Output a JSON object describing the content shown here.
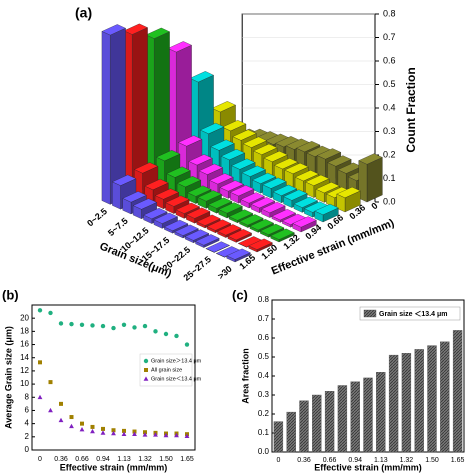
{
  "chart_data": [
    {
      "type": "bar3d",
      "panel_label": "(a)",
      "xlabel": "Grain size(μm)",
      "ylabel": "Effective strain (mm/mm)",
      "zlabel": "Count Fraction",
      "categories": [
        "0~2.5",
        null,
        "5~7.5",
        null,
        "10~12.5",
        null,
        "15~17.5",
        null,
        "20~22.5",
        null,
        "25~27.5",
        null,
        ">30"
      ],
      "zlim": [
        0,
        0.8
      ],
      "zticks": [
        {
          "value": 0,
          "label": "0.0"
        },
        0.1,
        0.2,
        0.3,
        0.4,
        0.5,
        0.6,
        0.7,
        0.8
      ],
      "series": [
        {
          "name": "0",
          "color": "#8a8a30",
          "values": [
            0.02,
            0.04,
            0.05,
            0.06,
            0.07,
            0.08,
            0.09,
            0.09,
            0.1,
            0.09,
            0.08,
            0.07,
            0.16
          ]
        },
        {
          "name": "0.36",
          "color": "#e6e600",
          "values": [
            0.18,
            0.12,
            0.1,
            0.09,
            0.08,
            0.07,
            0.06,
            0.06,
            0.05,
            0.05,
            0.04,
            0.04,
            0.06
          ]
        },
        {
          "name": "0.66",
          "color": "#00e0e0",
          "values": [
            0.35,
            0.15,
            0.1,
            0.08,
            0.06,
            0.05,
            0.04,
            0.04,
            0.03,
            0.03,
            0.02,
            0.02,
            0.03
          ]
        },
        {
          "name": "0.94",
          "color": "#ff30ff",
          "values": [
            0.52,
            0.14,
            0.08,
            0.06,
            0.04,
            0.03,
            0.03,
            0.02,
            0.02,
            0.02,
            0.01,
            0.01,
            0.02
          ]
        },
        {
          "name": "1.32",
          "color": "#20c020",
          "values": [
            0.62,
            0.12,
            0.07,
            0.05,
            0.03,
            0.03,
            0.02,
            0.02,
            0.01,
            0.01,
            0.01,
            0.01,
            0.01
          ]
        },
        {
          "name": "1.50",
          "color": "#ff2020",
          "values": [
            0.68,
            0.11,
            0.06,
            0.04,
            0.03,
            0.02,
            0.02,
            0.01,
            0.01,
            0.01,
            0.01,
            0.0,
            0.01
          ]
        },
        {
          "name": "1.65",
          "color": "#6a5aff",
          "values": [
            0.72,
            0.1,
            0.05,
            0.04,
            0.02,
            0.02,
            0.01,
            0.01,
            0.01,
            0.01,
            0.0,
            0.0,
            0.01
          ]
        }
      ]
    },
    {
      "type": "scatter",
      "panel_label": "(b)",
      "xlabel": "Effective strain (mm/mm)",
      "ylabel": "Average Grain size (μm)",
      "categories": [
        "0",
        null,
        "0.36",
        null,
        "0.66",
        null,
        "0.94",
        null,
        "1.13",
        null,
        "1.32",
        null,
        "1.50",
        null,
        "1.65"
      ],
      "ylim": [
        0,
        22
      ],
      "yticks": [
        0,
        2,
        4,
        6,
        8,
        10,
        12,
        14,
        16,
        18,
        20
      ],
      "series": [
        {
          "name": "Grain size＞13.4 μm",
          "color": "#20b080",
          "marker": "circle",
          "values": [
            21.2,
            20.8,
            19.2,
            19.1,
            19.0,
            18.9,
            18.8,
            18.5,
            19.0,
            18.6,
            18.8,
            18.0,
            17.6,
            17.3,
            16.0
          ]
        },
        {
          "name": "All grain size",
          "color": "#a08000",
          "marker": "square",
          "values": [
            13.3,
            10.3,
            7.0,
            5.0,
            4.0,
            3.5,
            3.2,
            3.0,
            2.9,
            2.8,
            2.7,
            2.6,
            2.5,
            2.5,
            2.4
          ]
        },
        {
          "name": "Grain size＜13.4 μm",
          "color": "#8020c0",
          "marker": "triangle",
          "values": [
            8.0,
            6.0,
            4.5,
            3.6,
            3.1,
            2.8,
            2.6,
            2.5,
            2.4,
            2.4,
            2.3,
            2.3,
            2.2,
            2.2,
            2.1
          ]
        }
      ]
    },
    {
      "type": "bar",
      "panel_label": "(c)",
      "xlabel": "Effective strain (mm/mm)",
      "ylabel": "Area fraction",
      "categories": [
        "0",
        null,
        "0.36",
        null,
        "0.66",
        null,
        "0.94",
        null,
        "1.13",
        null,
        "1.32",
        null,
        "1.50",
        null,
        "1.65"
      ],
      "ylim": [
        0,
        0.8
      ],
      "yticks": [
        {
          "value": 0,
          "label": "0.0"
        },
        0.1,
        0.2,
        0.3,
        0.4,
        0.5,
        0.6,
        0.7,
        0.8
      ],
      "series": [
        {
          "name": "Grain size ＜13.4 μm",
          "color": "#555555",
          "values": [
            0.16,
            0.21,
            0.27,
            0.3,
            0.32,
            0.35,
            0.37,
            0.39,
            0.42,
            0.51,
            0.52,
            0.54,
            0.56,
            0.58,
            0.64
          ]
        }
      ]
    }
  ]
}
